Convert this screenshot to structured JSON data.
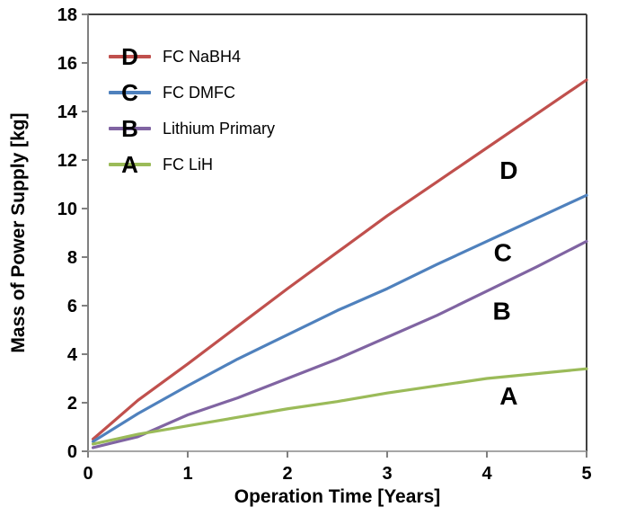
{
  "chart_data": {
    "type": "line",
    "title": "",
    "xlabel": "Operation Time [Years]",
    "ylabel": "Mass of Power Supply [kg]",
    "xlim": [
      0,
      5
    ],
    "ylim": [
      0,
      18
    ],
    "xticks": [
      "0",
      "1",
      "2",
      "3",
      "4",
      "5"
    ],
    "yticks": [
      "0",
      "2",
      "4",
      "6",
      "8",
      "10",
      "12",
      "14",
      "16",
      "18"
    ],
    "grid": false,
    "legend_position": "top-left-inside",
    "x": [
      0.05,
      0.5,
      1,
      1.5,
      2,
      2.5,
      3,
      3.5,
      4,
      4.5,
      5
    ],
    "series": [
      {
        "letter": "D",
        "name": "FC NaBH4",
        "color": "#c0504d",
        "values": [
          0.5,
          2.1,
          3.6,
          5.15,
          6.7,
          8.2,
          9.7,
          11.1,
          12.5,
          13.9,
          15.3
        ],
        "annotation": {
          "x": 4.22,
          "y": 11.6
        }
      },
      {
        "letter": "C",
        "name": "FC DMFC",
        "color": "#4f81bd",
        "values": [
          0.4,
          1.55,
          2.7,
          3.8,
          4.8,
          5.8,
          6.7,
          7.7,
          8.65,
          9.6,
          10.55
        ],
        "annotation": {
          "x": 4.16,
          "y": 8.2
        }
      },
      {
        "letter": "B",
        "name": "Lithium Primary",
        "color": "#8064a2",
        "values": [
          0.15,
          0.6,
          1.5,
          2.2,
          3.0,
          3.8,
          4.7,
          5.6,
          6.6,
          7.6,
          8.65
        ],
        "annotation": {
          "x": 4.15,
          "y": 5.8
        }
      },
      {
        "letter": "A",
        "name": "FC LiH",
        "color": "#9bbb59",
        "values": [
          0.3,
          0.7,
          1.05,
          1.4,
          1.75,
          2.05,
          2.4,
          2.7,
          3.0,
          3.2,
          3.4
        ],
        "annotation": {
          "x": 4.22,
          "y": 2.3
        }
      }
    ],
    "colors": {
      "box_border": "#404040",
      "left_axis": "#808080",
      "bottom_axis": "#a6a6a6",
      "tick": "#808080",
      "text": "#000000",
      "background": "#ffffff"
    }
  }
}
